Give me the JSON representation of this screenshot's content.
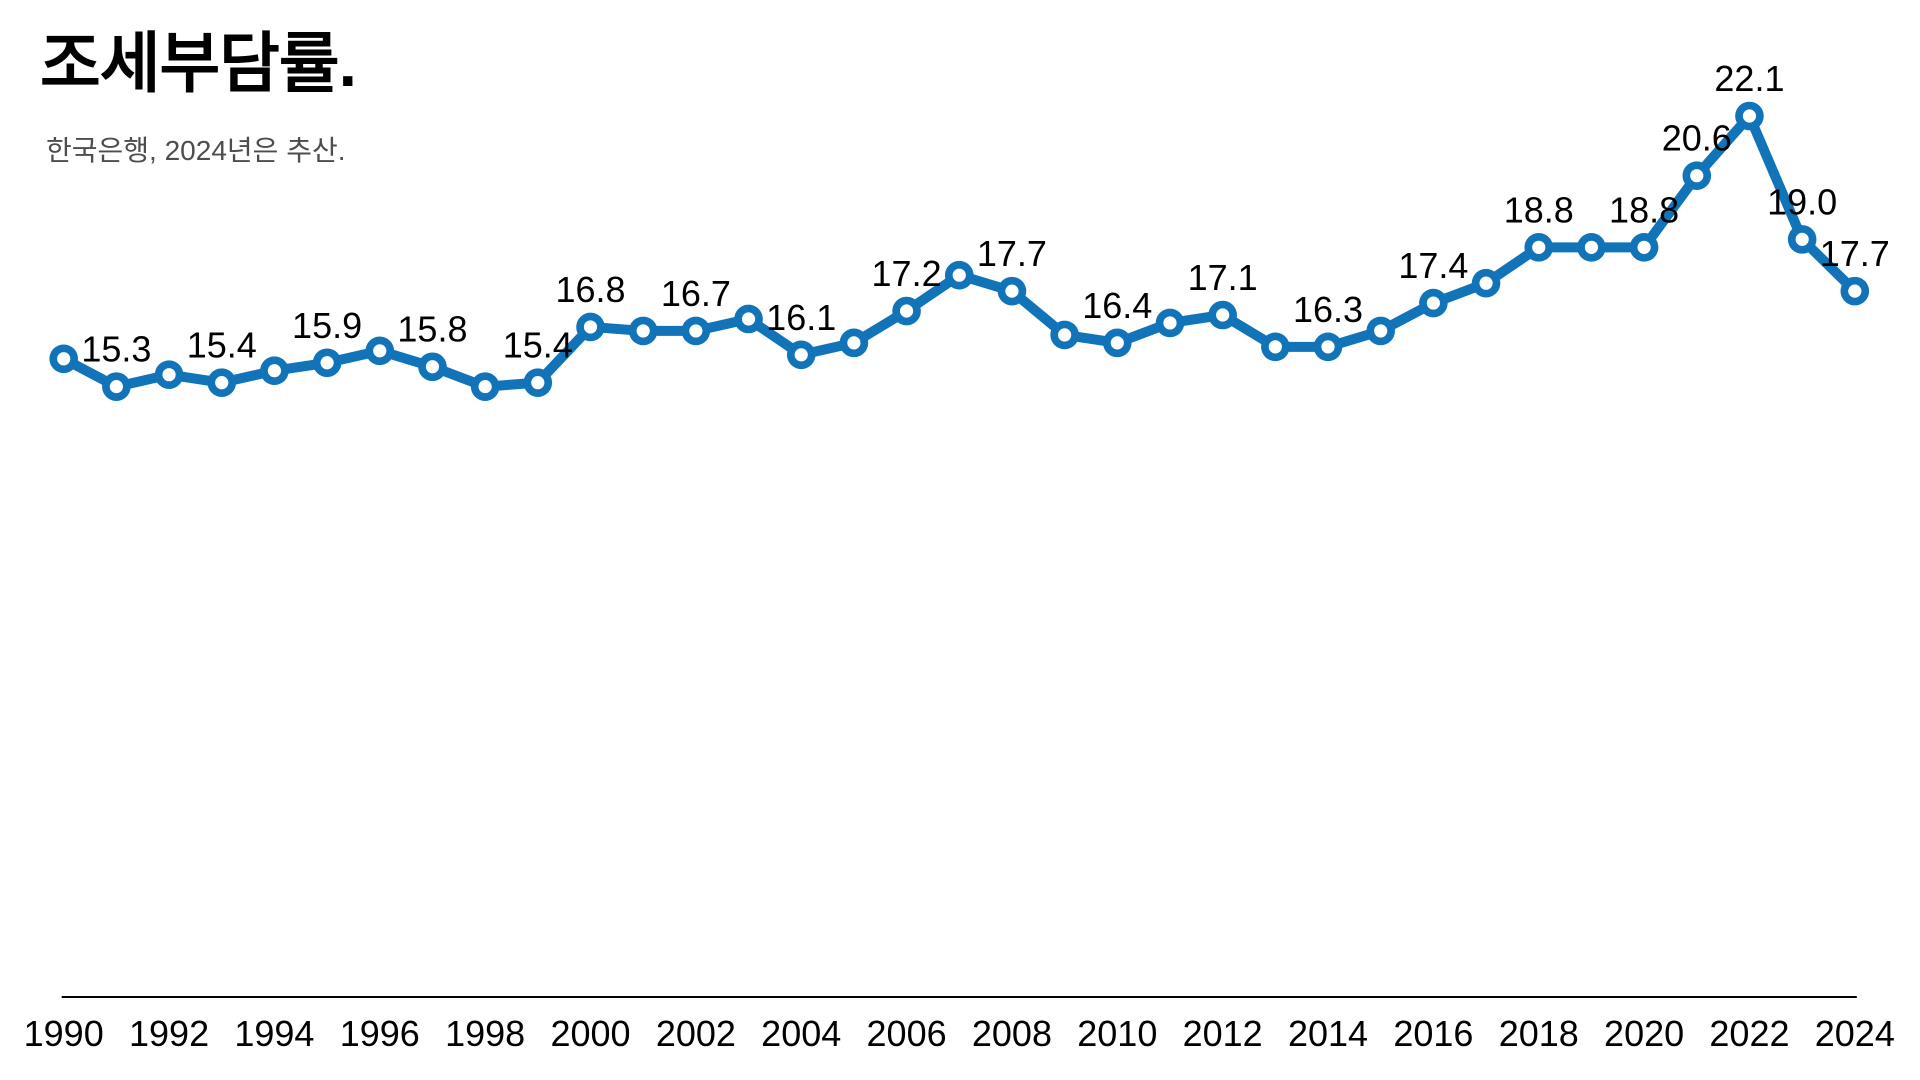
{
  "header": {
    "title": "조세부담률.",
    "subtitle": "한국은행, 2024년은 추산."
  },
  "colors": {
    "line": "#1173b8",
    "marker_fill": "#1173b8",
    "marker_hole": "#ffffff",
    "axis": "#000000",
    "label_text": "#000000",
    "subtitle_text": "#4d4d4d"
  },
  "chart_data": {
    "type": "line",
    "title": "조세부담률.",
    "source_note": "한국은행, 2024년은 추산.",
    "x": [
      1990,
      1991,
      1992,
      1993,
      1994,
      1995,
      1996,
      1997,
      1998,
      1999,
      2000,
      2001,
      2002,
      2003,
      2004,
      2005,
      2006,
      2007,
      2008,
      2009,
      2010,
      2011,
      2012,
      2013,
      2014,
      2015,
      2016,
      2017,
      2018,
      2019,
      2020,
      2021,
      2022,
      2023,
      2024
    ],
    "series": [
      {
        "name": "조세부담률",
        "values": [
          16.0,
          15.3,
          15.6,
          15.4,
          15.7,
          15.9,
          16.2,
          15.8,
          15.3,
          15.4,
          16.8,
          16.7,
          16.7,
          17.0,
          16.1,
          16.4,
          17.2,
          18.1,
          17.7,
          16.6,
          16.4,
          16.9,
          17.1,
          16.3,
          16.3,
          16.7,
          17.4,
          17.9,
          18.8,
          18.8,
          18.8,
          20.6,
          22.1,
          19.0,
          17.7
        ]
      }
    ],
    "point_labels": [
      "",
      "15.3",
      "",
      "15.4",
      "",
      "15.9",
      "",
      "15.8",
      "",
      "15.4",
      "16.8",
      "",
      "16.7",
      "",
      "16.1",
      "",
      "17.2",
      "",
      "17.7",
      "",
      "16.4",
      "",
      "17.1",
      "",
      "16.3",
      "",
      "17.4",
      "",
      "18.8",
      "",
      "18.8",
      "20.6",
      "22.1",
      "19.0",
      "17.7"
    ],
    "x_tick_labels": [
      "1990",
      "1992",
      "1994",
      "1996",
      "1998",
      "2000",
      "2002",
      "2004",
      "2006",
      "2008",
      "2010",
      "2012",
      "2014",
      "2016",
      "2018",
      "2020",
      "2022",
      "2024"
    ],
    "xlabel": "",
    "ylabel": "",
    "ylim": [
      15.0,
      22.5
    ],
    "grid": false,
    "legend": "none",
    "y_axis_shown": false,
    "x_axis_shown": true
  }
}
